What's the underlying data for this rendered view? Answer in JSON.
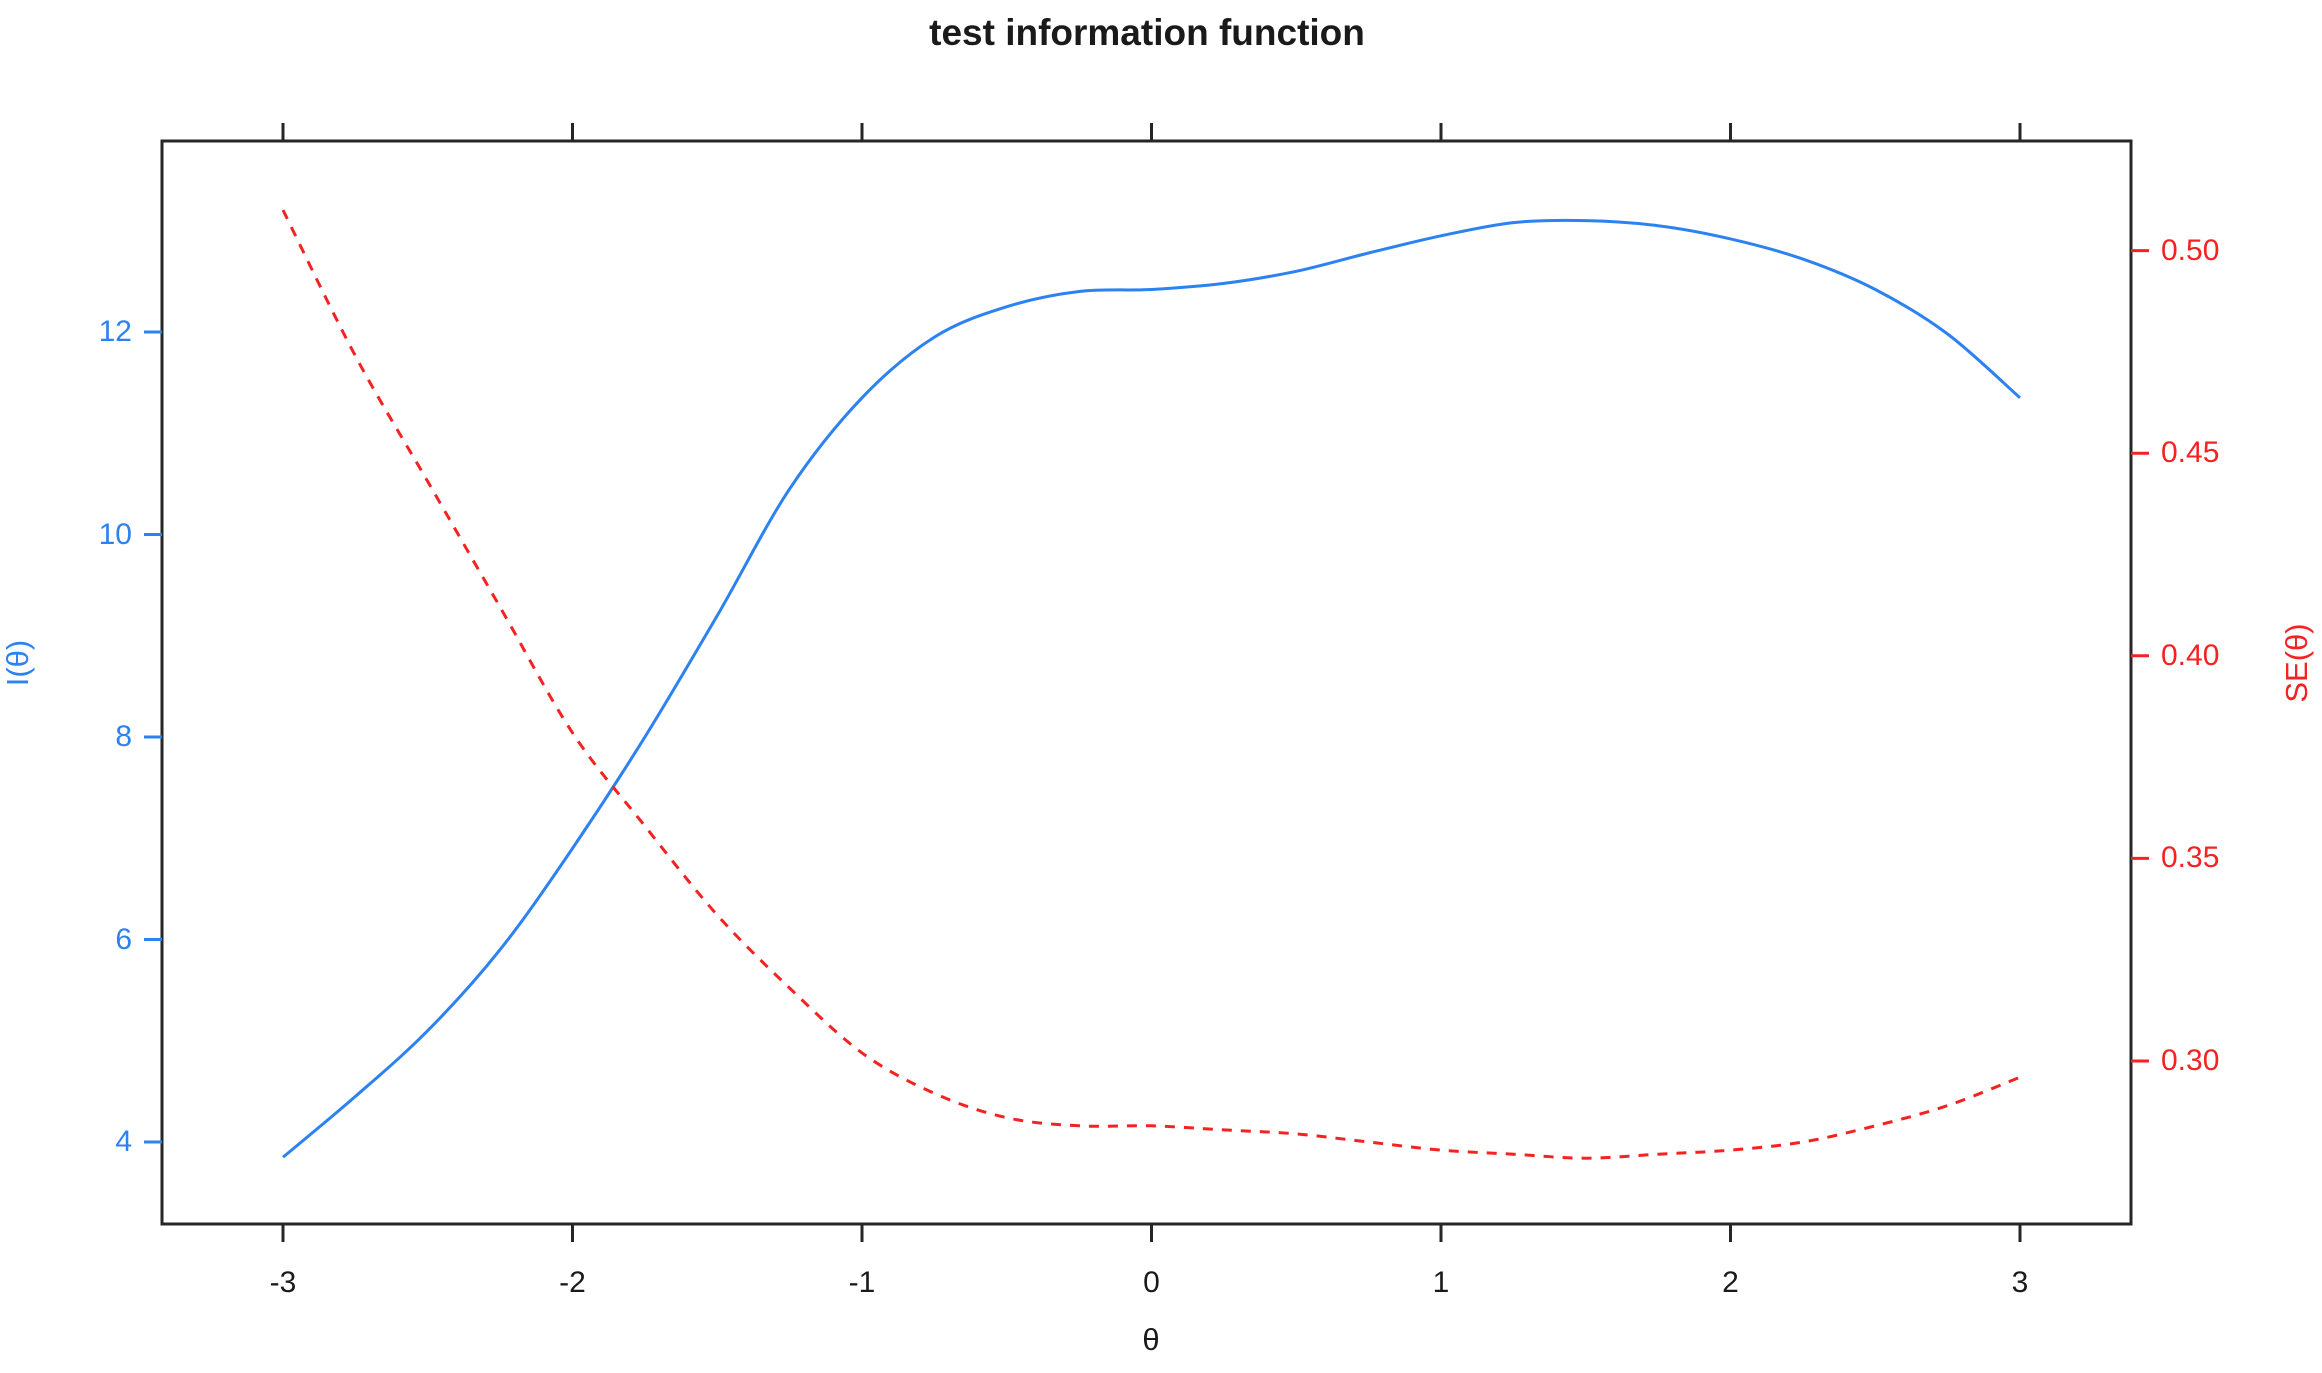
{
  "chart_data": {
    "type": "line",
    "title": "test information function",
    "xlabel": "θ",
    "x_axis": {
      "range": [
        -3.4,
        3.4
      ],
      "ticks": [
        {
          "value": -3,
          "label": "-3"
        },
        {
          "value": -2,
          "label": "-2"
        },
        {
          "value": -1,
          "label": "-1"
        },
        {
          "value": 0,
          "label": "0"
        },
        {
          "value": 1,
          "label": "1"
        },
        {
          "value": 2,
          "label": "2"
        },
        {
          "value": 3,
          "label": "3"
        }
      ]
    },
    "left_axis": {
      "label": "I(θ)",
      "color": "#2b82f0",
      "range": [
        3.2,
        13.9
      ],
      "ticks": [
        {
          "value": 4,
          "label": "4"
        },
        {
          "value": 6,
          "label": "6"
        },
        {
          "value": 8,
          "label": "8"
        },
        {
          "value": 10,
          "label": "10"
        },
        {
          "value": 12,
          "label": "12"
        }
      ]
    },
    "right_axis": {
      "label": "SE(θ)",
      "color": "#f52222",
      "range": [
        0.26,
        0.527
      ],
      "ticks": [
        {
          "value": 0.3,
          "label": "0.30"
        },
        {
          "value": 0.35,
          "label": "0.35"
        },
        {
          "value": 0.4,
          "label": "0.40"
        },
        {
          "value": 0.45,
          "label": "0.45"
        },
        {
          "value": 0.5,
          "label": "0.50"
        }
      ]
    },
    "grid": false,
    "legend": "none",
    "series": [
      {
        "name": "I(θ)",
        "axis": "left",
        "style": "solid",
        "color": "#2b82f0",
        "x": [
          -3,
          -2.75,
          -2.5,
          -2.25,
          -2,
          -1.75,
          -1.5,
          -1.25,
          -1,
          -0.75,
          -0.5,
          -0.25,
          0,
          0.25,
          0.5,
          0.75,
          1,
          1.25,
          1.5,
          1.75,
          2,
          2.25,
          2.5,
          2.75,
          3
        ],
        "y": [
          3.85,
          4.45,
          5.1,
          5.9,
          6.9,
          8.0,
          9.2,
          10.45,
          11.35,
          11.95,
          12.25,
          12.4,
          12.42,
          12.48,
          12.6,
          12.78,
          12.95,
          13.08,
          13.1,
          13.05,
          12.92,
          12.72,
          12.42,
          11.98,
          11.35
        ]
      },
      {
        "name": "SE(θ)",
        "axis": "right",
        "style": "dashed",
        "color": "#f52222",
        "x": [
          -3,
          -2.75,
          -2.5,
          -2.25,
          -2,
          -1.75,
          -1.5,
          -1.25,
          -1,
          -0.75,
          -0.5,
          -0.25,
          0,
          0.25,
          0.5,
          0.75,
          1,
          1.25,
          1.5,
          1.75,
          2,
          2.25,
          2.5,
          2.75,
          3
        ],
        "y": [
          0.51,
          0.474,
          0.443,
          0.412,
          0.381,
          0.358,
          0.336,
          0.318,
          0.302,
          0.292,
          0.286,
          0.284,
          0.284,
          0.283,
          0.282,
          0.28,
          0.278,
          0.277,
          0.276,
          0.277,
          0.278,
          0.28,
          0.284,
          0.289,
          0.296
        ]
      }
    ]
  }
}
